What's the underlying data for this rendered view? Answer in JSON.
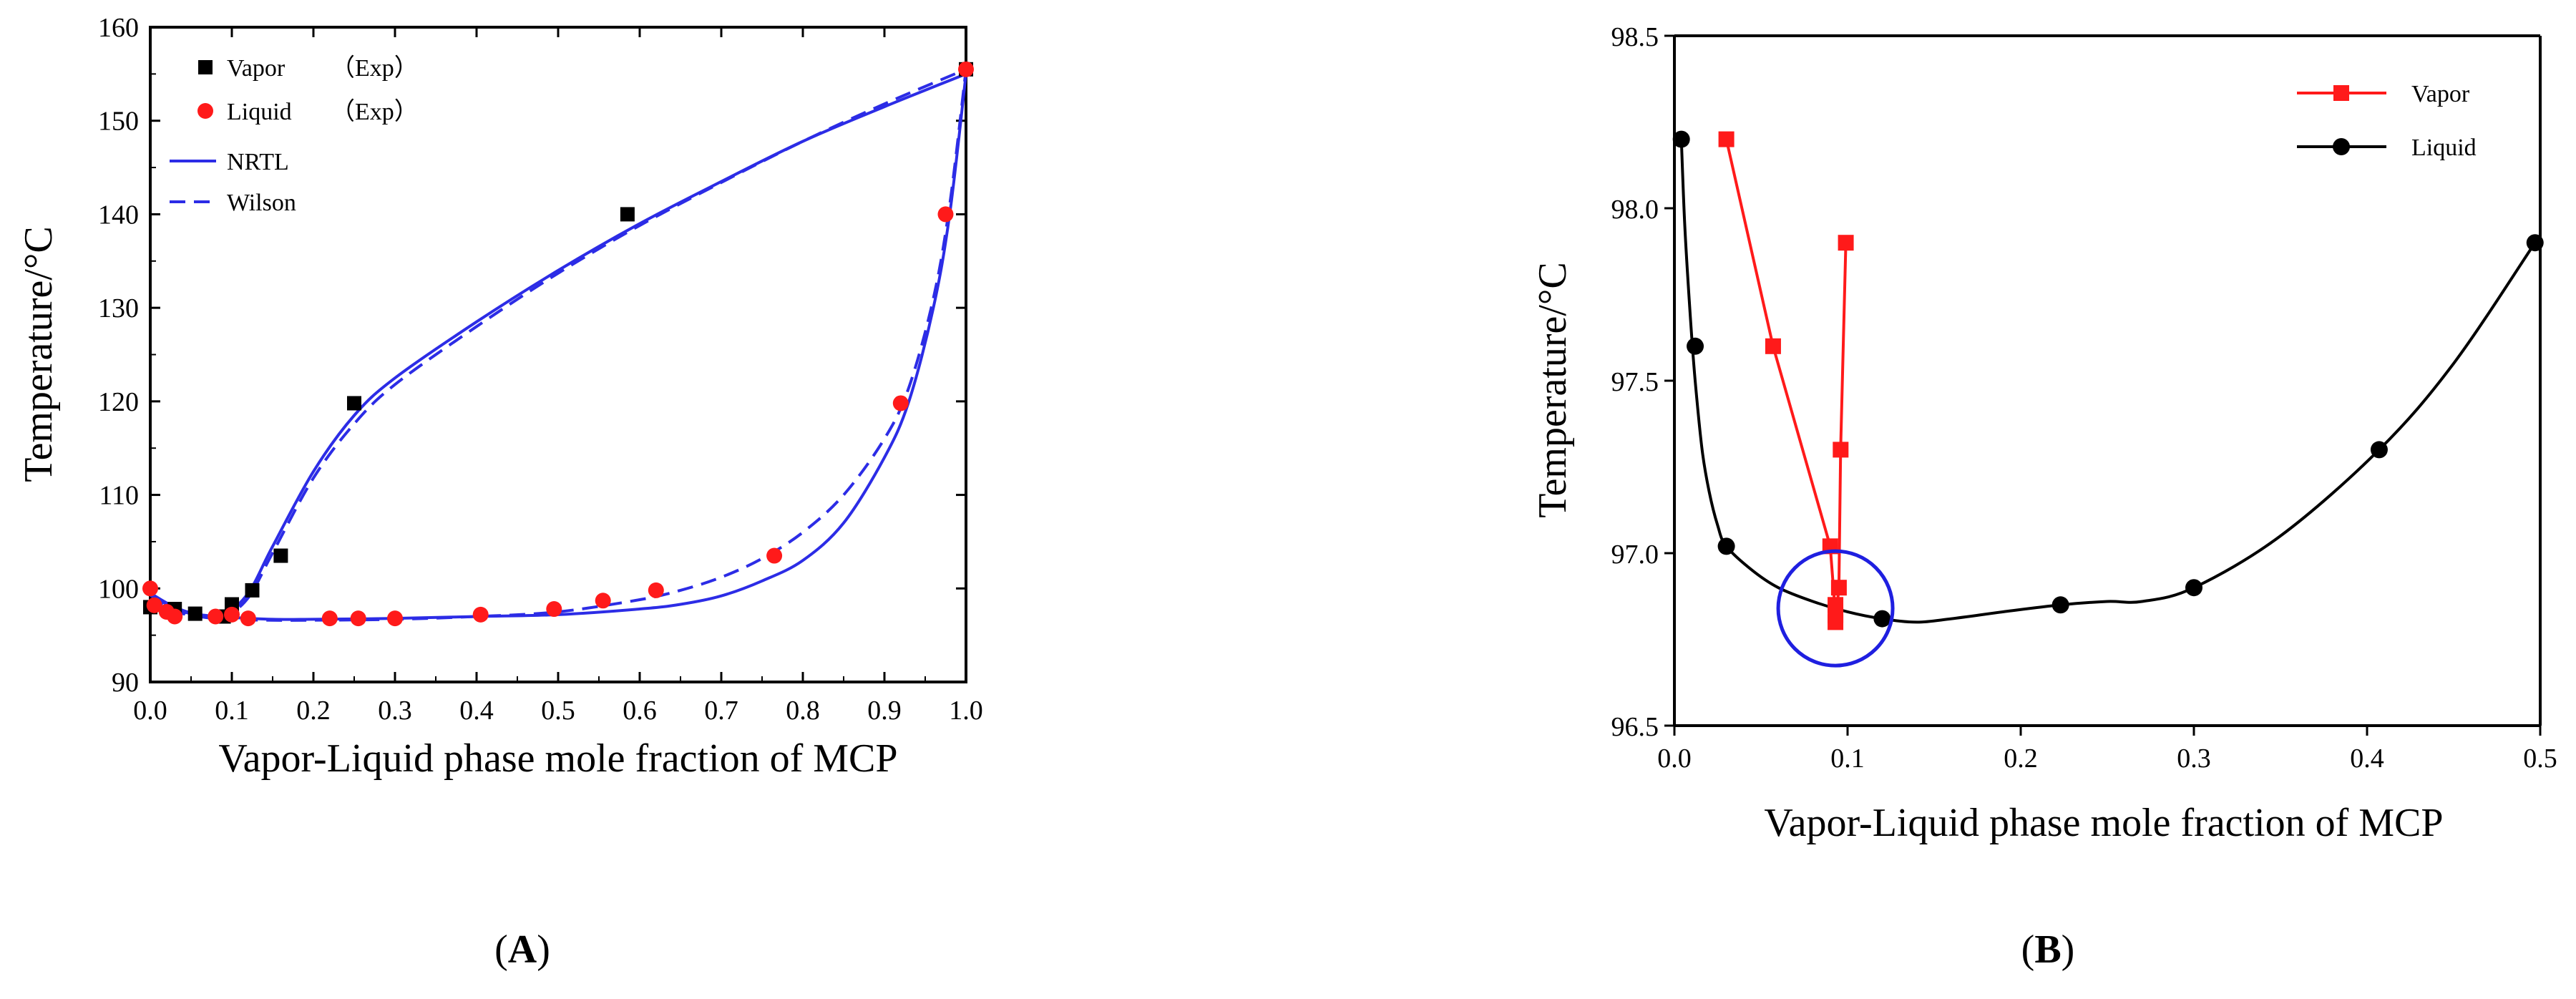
{
  "chart_data": [
    {
      "panel_label": "A",
      "type": "line",
      "xlabel": "Vapor-Liquid phase mole fraction of MCP",
      "ylabel": "Temperature/°C",
      "xlim": [
        0.0,
        1.0
      ],
      "ylim": [
        90,
        160
      ],
      "xticks": [
        "0.0",
        "0.1",
        "0.2",
        "0.3",
        "0.4",
        "0.5",
        "0.6",
        "0.7",
        "0.8",
        "0.9",
        "1.0"
      ],
      "yticks": [
        "90",
        "100",
        "110",
        "120",
        "130",
        "140",
        "150",
        "160"
      ],
      "legend": [
        {
          "label": "Vapor",
          "suffix": "（Exp）"
        },
        {
          "label": "Liquid",
          "suffix": "（Exp）"
        },
        {
          "label": "NRTL",
          "suffix": ""
        },
        {
          "label": "Wilson",
          "suffix": ""
        }
      ],
      "series": [
        {
          "name": "Vapor (Exp)",
          "style": "square",
          "color": "#000000",
          "x": [
            0.0,
            0.03,
            0.055,
            0.09,
            0.1,
            0.125,
            0.16,
            0.25,
            0.585,
            1.0
          ],
          "y": [
            98.0,
            97.8,
            97.3,
            97.0,
            98.3,
            99.8,
            103.5,
            119.8,
            140.0,
            155.5
          ]
        },
        {
          "name": "Liquid (Exp)",
          "style": "circle",
          "color": "#ff1a1a",
          "x": [
            0.0,
            0.005,
            0.02,
            0.03,
            0.08,
            0.1,
            0.12,
            0.22,
            0.255,
            0.3,
            0.405,
            0.495,
            0.555,
            0.62,
            0.765,
            0.92,
            0.975,
            1.0
          ],
          "y": [
            100.0,
            98.2,
            97.5,
            97.0,
            97.0,
            97.2,
            96.8,
            96.8,
            96.8,
            96.8,
            97.2,
            97.8,
            98.7,
            99.8,
            103.5,
            119.8,
            140.0,
            155.5
          ]
        },
        {
          "name": "NRTL vapor",
          "style": "solid",
          "color": "#2c2ce6",
          "x": [
            0.0,
            0.03,
            0.06,
            0.09,
            0.12,
            0.15,
            0.2,
            0.25,
            0.3,
            0.4,
            0.5,
            0.6,
            0.7,
            0.8,
            0.9,
            1.0
          ],
          "y": [
            99.5,
            98.0,
            97.2,
            97.2,
            99.5,
            104.5,
            112.5,
            118.5,
            122.5,
            128.5,
            134.0,
            139.0,
            143.5,
            147.8,
            151.5,
            155.0
          ]
        },
        {
          "name": "NRTL liquid",
          "style": "solid",
          "color": "#2c2ce6",
          "x": [
            0.0,
            0.03,
            0.06,
            0.1,
            0.15,
            0.2,
            0.3,
            0.4,
            0.5,
            0.6,
            0.65,
            0.7,
            0.75,
            0.8,
            0.85,
            0.9,
            0.93,
            0.96,
            0.98,
            1.0
          ],
          "y": [
            99.5,
            97.8,
            97.2,
            96.9,
            96.7,
            96.7,
            96.8,
            97.0,
            97.2,
            97.8,
            98.3,
            99.2,
            100.8,
            103.0,
            107.0,
            114.0,
            120.0,
            130.0,
            140.0,
            155.0
          ]
        },
        {
          "name": "Wilson vapor",
          "style": "dashed",
          "color": "#2c2ce6",
          "x": [
            0.0,
            0.03,
            0.06,
            0.09,
            0.12,
            0.15,
            0.2,
            0.25,
            0.3,
            0.4,
            0.5,
            0.6,
            0.7,
            0.8,
            0.9,
            1.0
          ],
          "y": [
            99.3,
            97.8,
            97.0,
            97.0,
            99.0,
            103.8,
            111.8,
            117.6,
            121.8,
            128.0,
            133.7,
            138.8,
            143.4,
            147.8,
            151.8,
            155.5
          ]
        },
        {
          "name": "Wilson liquid",
          "style": "dashed",
          "color": "#2c2ce6",
          "x": [
            0.0,
            0.03,
            0.06,
            0.1,
            0.15,
            0.2,
            0.3,
            0.4,
            0.5,
            0.6,
            0.65,
            0.7,
            0.75,
            0.8,
            0.85,
            0.9,
            0.93,
            0.96,
            0.98,
            1.0
          ],
          "y": [
            99.3,
            97.6,
            97.0,
            96.7,
            96.6,
            96.6,
            96.7,
            97.0,
            97.5,
            98.8,
            99.8,
            101.2,
            103.2,
            106.0,
            110.0,
            116.0,
            121.5,
            131.0,
            141.0,
            155.5
          ]
        }
      ]
    },
    {
      "panel_label": "B",
      "type": "line",
      "xlabel": "Vapor-Liquid phase mole fraction of MCP",
      "ylabel": "Temperature/°C",
      "xlim": [
        0.0,
        0.5
      ],
      "ylim": [
        96.5,
        98.5
      ],
      "xticks": [
        "0.0",
        "0.1",
        "0.2",
        "0.3",
        "0.4",
        "0.5"
      ],
      "yticks": [
        "96.5",
        "97.0",
        "97.5",
        "98.0",
        "98.5"
      ],
      "legend": [
        {
          "label": "Vapor",
          "suffix": ""
        },
        {
          "label": "Liquid",
          "suffix": ""
        }
      ],
      "series": [
        {
          "name": "Vapor",
          "style": "line-square",
          "color": "#ff1a1a",
          "x": [
            0.03,
            0.057,
            0.09,
            0.093,
            0.093,
            0.093,
            0.095,
            0.096,
            0.099
          ],
          "y": [
            98.2,
            97.6,
            97.02,
            96.82,
            96.85,
            96.8,
            96.9,
            97.3,
            97.9
          ]
        },
        {
          "name": "Liquid",
          "style": "line-circle",
          "color": "#000000",
          "x": [
            0.004,
            0.012,
            0.03,
            0.12,
            0.223,
            0.3,
            0.407,
            0.497
          ],
          "y": [
            98.2,
            97.6,
            97.02,
            96.81,
            96.85,
            96.9,
            97.3,
            97.9
          ]
        },
        {
          "name": "Liquid smooth",
          "style": "smooth",
          "color": "#000000",
          "x": [
            0.004,
            0.006,
            0.009,
            0.012,
            0.016,
            0.02,
            0.025,
            0.03,
            0.045,
            0.06,
            0.08,
            0.1,
            0.12,
            0.14,
            0.16,
            0.19,
            0.223,
            0.25,
            0.27,
            0.3,
            0.35,
            0.407,
            0.45,
            0.497
          ],
          "y": [
            98.2,
            97.95,
            97.7,
            97.5,
            97.3,
            97.18,
            97.08,
            97.02,
            96.95,
            96.9,
            96.86,
            96.83,
            96.81,
            96.8,
            96.81,
            96.83,
            96.85,
            96.86,
            96.86,
            96.9,
            97.05,
            97.3,
            97.55,
            97.9
          ]
        }
      ],
      "annotation": {
        "type": "circle",
        "color": "#1f1fe0",
        "cx": 0.093,
        "cy": 96.84,
        "label": ""
      }
    }
  ]
}
